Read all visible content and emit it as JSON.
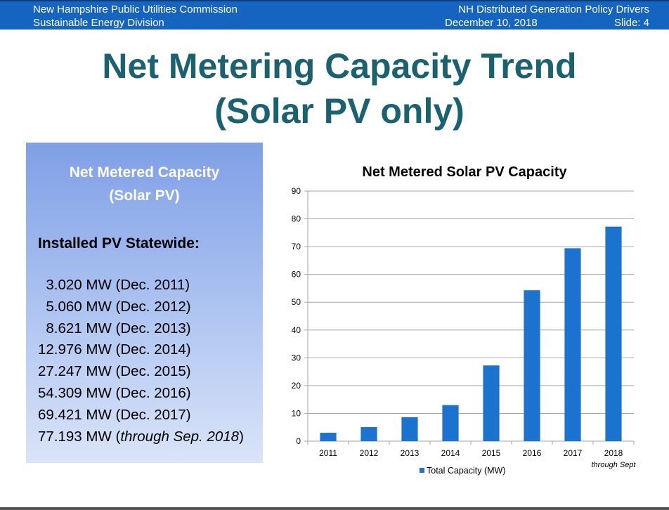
{
  "header": {
    "org": "New Hampshire Public Utilities Commission",
    "division": "Sustainable Energy Division",
    "presentation": "NH Distributed Generation Policy Drivers",
    "date": "December 10, 2018",
    "slide": "Slide: 4",
    "bg_color": "#1565c0"
  },
  "slide_title": {
    "line1": "Net Metering Capacity Trend",
    "line2": "(Solar PV only)",
    "color": "#1a6270"
  },
  "panel": {
    "heading_line1": "Net Metered Capacity",
    "heading_line2": "(Solar PV)",
    "installed_title": "Installed PV Statewide:",
    "items": [
      {
        "value": "  3.020 MW",
        "period": "(Dec. 2011)"
      },
      {
        "value": "  5.060 MW",
        "period": "(Dec. 2012)"
      },
      {
        "value": "  8.621 MW",
        "period": "(Dec. 2013)"
      },
      {
        "value": "12.976 MW",
        "period": "(Dec. 2014)"
      },
      {
        "value": "27.247 MW",
        "period": "(Dec. 2015)"
      },
      {
        "value": "54.309 MW",
        "period": "(Dec. 2016)"
      },
      {
        "value": "69.421 MW",
        "period": "(Dec. 2017)"
      },
      {
        "value": "77.193 MW",
        "period_prefix": "(",
        "period_italic": "through Sep. 2018",
        "period_suffix": ")"
      }
    ]
  },
  "chart_data": {
    "type": "bar",
    "title": "Net Metered Solar PV Capacity",
    "categories": [
      "2011",
      "2012",
      "2013",
      "2014",
      "2015",
      "2016",
      "2017",
      "2018"
    ],
    "category_sublabels": {
      "2018": "through Sept"
    },
    "series": [
      {
        "name": "Total Capacity (MW)",
        "values": [
          3.02,
          5.06,
          8.621,
          12.976,
          27.247,
          54.309,
          69.421,
          77.193
        ],
        "color": "#1b73cf"
      }
    ],
    "ylim": [
      0,
      90
    ],
    "yticks": [
      0,
      10,
      20,
      30,
      40,
      50,
      60,
      70,
      80,
      90
    ],
    "grid": true,
    "legend_position": "bottom"
  }
}
